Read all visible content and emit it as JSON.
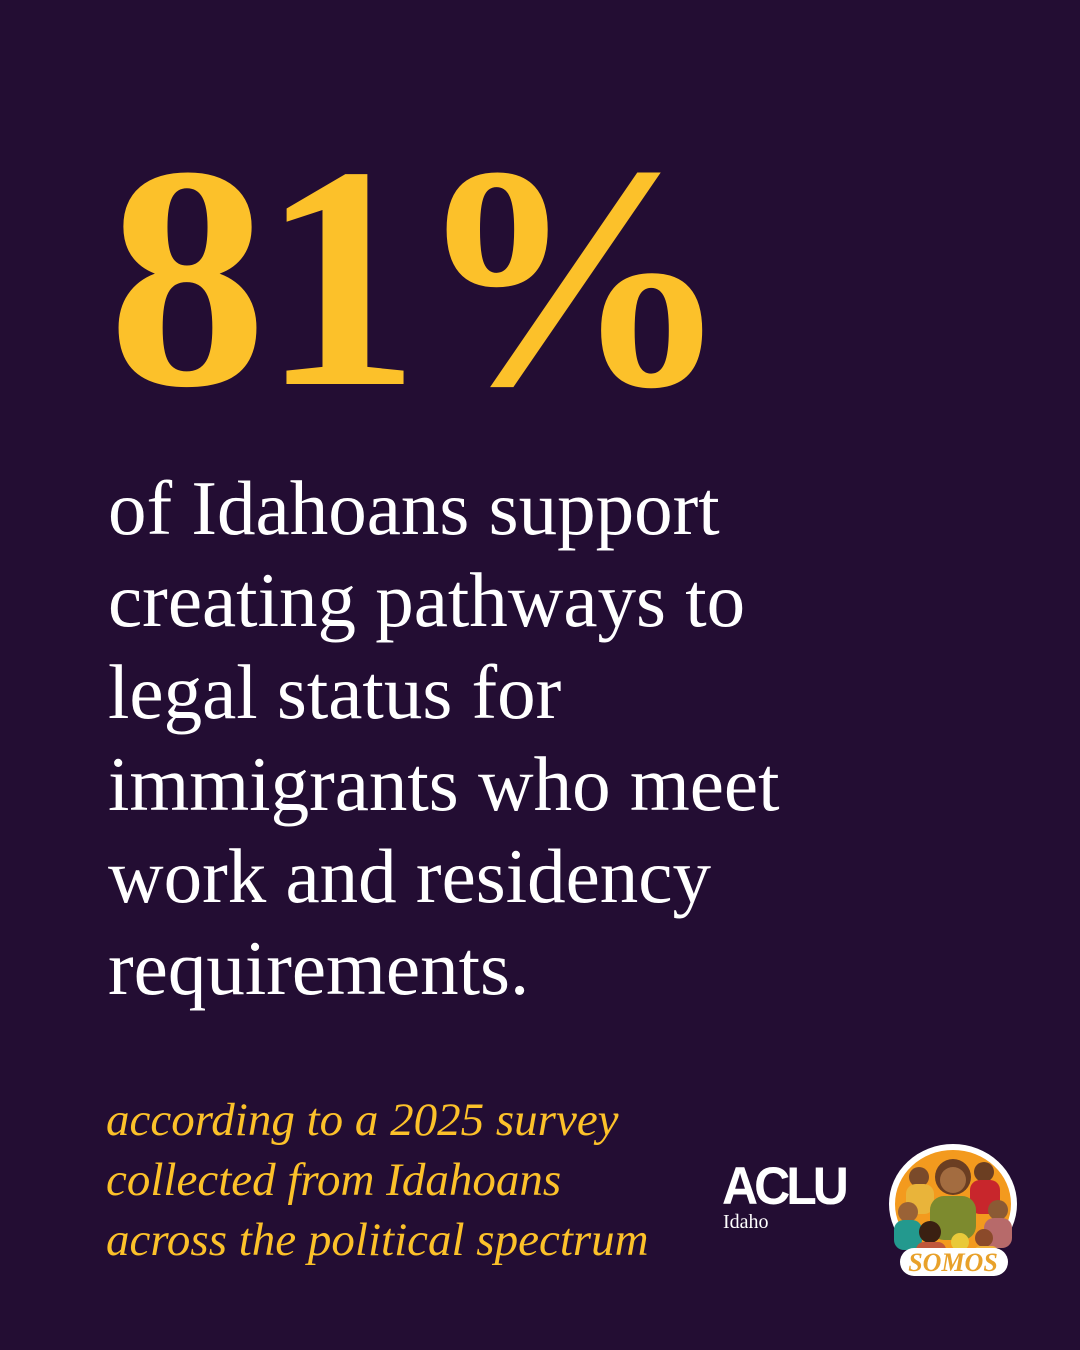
{
  "headline": {
    "stat": "81%"
  },
  "statement": {
    "lines": [
      "of Idahoans support",
      "creating pathways to",
      "legal status for",
      "immigrants who meet",
      "work and residency",
      "requirements."
    ]
  },
  "source": {
    "lines": [
      "according to a 2025 survey",
      "collected from Idahoans",
      "across the political spectrum"
    ]
  },
  "logos": {
    "aclu": "ACLU",
    "aclu_sub": "Idaho",
    "somos": "SOMOS"
  },
  "colors": {
    "background": "#230d33",
    "accent": "#fcc12a",
    "text": "#ffffff"
  }
}
